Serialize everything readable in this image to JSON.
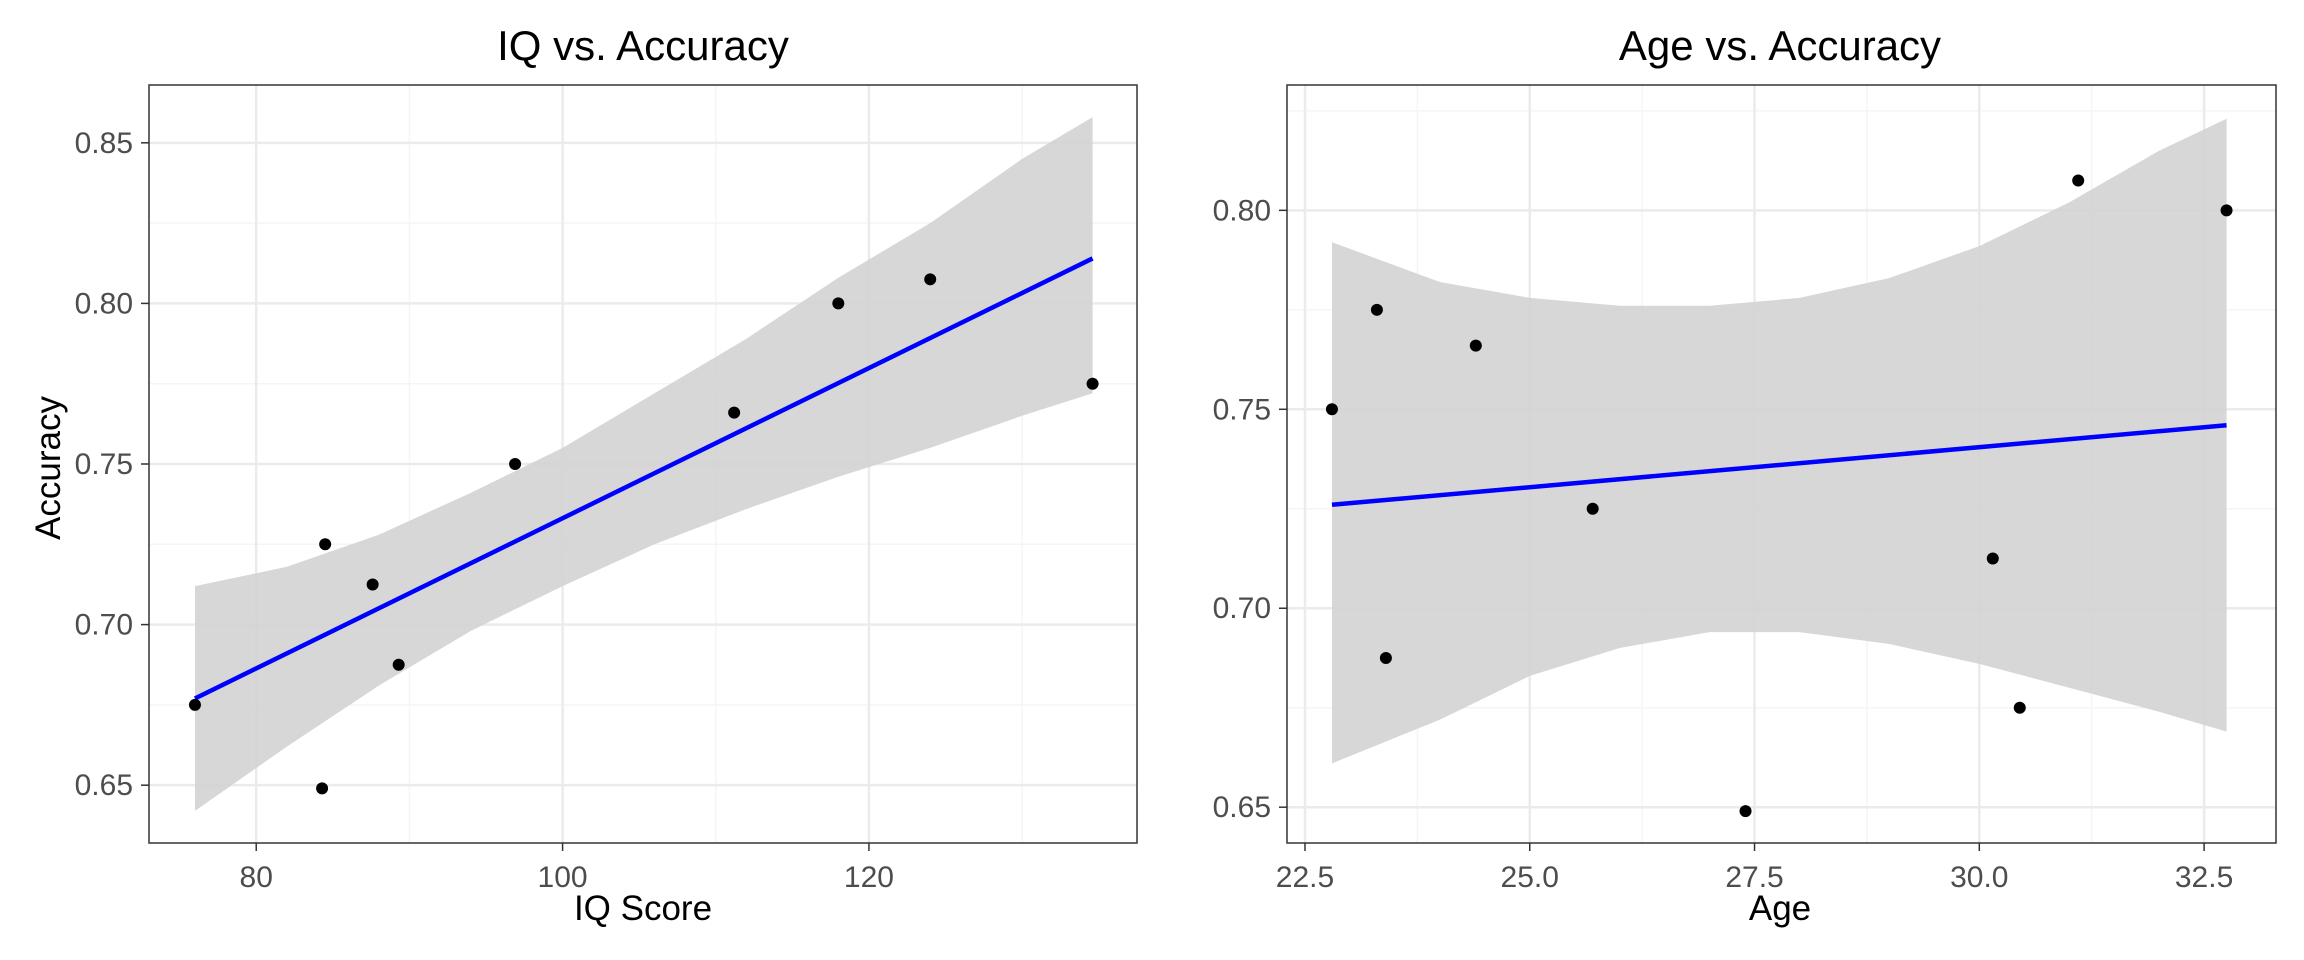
{
  "colors": {
    "background": "#ffffff",
    "panel_border": "#333333",
    "grid_major": "#ebebeb",
    "grid_minor": "#f5f5f5",
    "confidence_band": "#d3d3d3",
    "fit_line": "#0000ff",
    "points": "#000000",
    "tick_text": "#4d4d4d"
  },
  "chart_data": [
    {
      "type": "scatter",
      "title": "IQ vs. Accuracy",
      "xlabel": "IQ Score",
      "ylabel": "Accuracy",
      "xlim": [
        73,
        137.5
      ],
      "ylim": [
        0.632,
        0.868
      ],
      "xticks": [
        80,
        100,
        120
      ],
      "xtick_labels": [
        "80",
        "100",
        "120"
      ],
      "yticks": [
        0.65,
        0.7,
        0.75,
        0.8,
        0.85
      ],
      "ytick_labels": [
        "0.65",
        "0.70",
        "0.75",
        "0.80",
        "0.85"
      ],
      "grid": true,
      "points": [
        {
          "x": 76.0,
          "y": 0.675
        },
        {
          "x": 84.3,
          "y": 0.649
        },
        {
          "x": 84.5,
          "y": 0.725
        },
        {
          "x": 87.6,
          "y": 0.7125
        },
        {
          "x": 89.3,
          "y": 0.6875
        },
        {
          "x": 96.9,
          "y": 0.75
        },
        {
          "x": 111.2,
          "y": 0.766
        },
        {
          "x": 118.0,
          "y": 0.8
        },
        {
          "x": 124.0,
          "y": 0.8075
        },
        {
          "x": 134.6,
          "y": 0.775
        }
      ],
      "fit_line": {
        "x": [
          76.0,
          134.6
        ],
        "y": [
          0.677,
          0.814
        ]
      },
      "confidence_band": {
        "x": [
          76.0,
          82.0,
          88.0,
          94.0,
          100.0,
          106.0,
          112.0,
          118.0,
          124.0,
          130.0,
          134.6
        ],
        "lower": [
          0.642,
          0.662,
          0.681,
          0.698,
          0.712,
          0.725,
          0.736,
          0.746,
          0.755,
          0.765,
          0.772
        ],
        "upper": [
          0.712,
          0.718,
          0.728,
          0.741,
          0.755,
          0.772,
          0.789,
          0.808,
          0.825,
          0.845,
          0.858
        ]
      }
    },
    {
      "type": "scatter",
      "title": "Age vs. Accuracy",
      "xlabel": "Age",
      "ylabel": "",
      "xlim": [
        22.3,
        33.3
      ],
      "ylim": [
        0.641,
        0.8315
      ],
      "xticks": [
        22.5,
        25.0,
        27.5,
        30.0,
        32.5
      ],
      "xtick_labels": [
        "22.5",
        "25.0",
        "27.5",
        "30.0",
        "32.5"
      ],
      "yticks": [
        0.65,
        0.7,
        0.75,
        0.8
      ],
      "ytick_labels": [
        "0.65",
        "0.70",
        "0.75",
        "0.80"
      ],
      "grid": true,
      "points": [
        {
          "x": 22.8,
          "y": 0.75
        },
        {
          "x": 23.3,
          "y": 0.775
        },
        {
          "x": 23.4,
          "y": 0.6875
        },
        {
          "x": 24.4,
          "y": 0.766
        },
        {
          "x": 25.7,
          "y": 0.725
        },
        {
          "x": 27.4,
          "y": 0.649
        },
        {
          "x": 30.15,
          "y": 0.7125
        },
        {
          "x": 30.45,
          "y": 0.675
        },
        {
          "x": 31.1,
          "y": 0.8075
        },
        {
          "x": 32.75,
          "y": 0.8
        }
      ],
      "fit_line": {
        "x": [
          22.8,
          32.75
        ],
        "y": [
          0.726,
          0.746
        ]
      },
      "confidence_band": {
        "x": [
          22.8,
          24.0,
          25.0,
          26.0,
          27.0,
          28.0,
          29.0,
          30.0,
          31.0,
          32.0,
          32.75
        ],
        "lower": [
          0.661,
          0.672,
          0.683,
          0.69,
          0.694,
          0.694,
          0.691,
          0.686,
          0.68,
          0.674,
          0.669
        ],
        "upper": [
          0.792,
          0.782,
          0.778,
          0.776,
          0.776,
          0.778,
          0.783,
          0.791,
          0.802,
          0.815,
          0.823
        ]
      }
    }
  ]
}
